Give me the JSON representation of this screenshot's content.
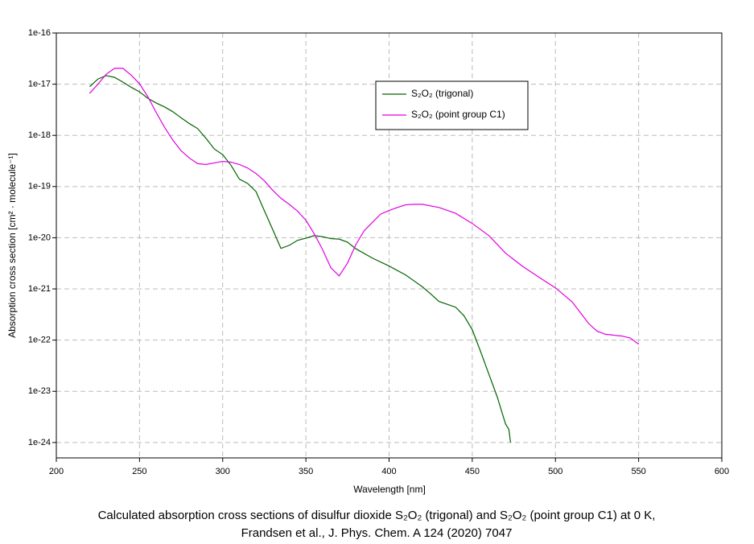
{
  "chart_data": {
    "type": "line",
    "x_label": "Wavelength [nm]",
    "y_label": "Absorption cross section [cm² · molecule⁻¹]",
    "caption": [
      "Calculated absorption cross sections of disulfur dioxide S₂O₂ (trigonal) and S₂O₂ (point group C1) at 0 K,",
      "Frandsen et al., J. Phys. Chem. A 124 (2020) 7047"
    ],
    "xlim": [
      200,
      600
    ],
    "xticks": [
      200,
      250,
      300,
      350,
      400,
      450,
      500,
      550,
      600
    ],
    "ylim": [
      5e-25,
      1e-16
    ],
    "yticks": [
      1e-24,
      1e-23,
      1e-22,
      1e-21,
      1e-20,
      1e-19,
      1e-18,
      1e-17,
      1e-16
    ],
    "yscale": "log",
    "grid": true,
    "legend": "upper right",
    "series": [
      {
        "name": "S₂O₂ (trigonal)",
        "color": "#006400",
        "x": [
          220,
          225,
          230,
          235,
          240,
          245,
          250,
          255,
          260,
          265,
          270,
          275,
          280,
          285,
          290,
          295,
          300,
          305,
          310,
          315,
          320,
          325,
          330,
          335,
          340,
          345,
          350,
          355,
          360,
          365,
          370,
          375,
          380,
          390,
          400,
          410,
          420,
          425,
          430,
          435,
          440,
          445,
          450,
          455,
          460,
          465,
          470,
          472,
          473
        ],
        "values": [
          8.9e-18,
          1.26e-17,
          1.47e-17,
          1.36e-17,
          1.1e-17,
          8.7e-18,
          7.1e-18,
          5.3e-18,
          4.3e-18,
          3.6e-18,
          2.9e-18,
          2.2e-18,
          1.7e-18,
          1.35e-18,
          8.7e-19,
          5.4e-19,
          4.2e-19,
          2.6e-19,
          1.4e-19,
          1.15e-19,
          8e-20,
          3.4e-20,
          1.46e-20,
          6.2e-21,
          7.1e-21,
          8.9e-21,
          9.8e-21,
          1.1e-20,
          1.05e-20,
          9.6e-21,
          9.4e-21,
          8.2e-21,
          6.1e-21,
          4e-21,
          2.8e-21,
          1.87e-21,
          1.1e-21,
          8e-22,
          5.7e-22,
          5e-22,
          4.4e-22,
          3e-22,
          1.6e-22,
          6e-23,
          2.15e-23,
          7.8e-24,
          2.3e-24,
          1.8e-24,
          1e-24
        ]
      },
      {
        "name": "S₂O₂ (point group C1)",
        "color": "#e000e0",
        "x": [
          220,
          225,
          230,
          235,
          240,
          245,
          250,
          255,
          260,
          265,
          270,
          275,
          280,
          285,
          290,
          295,
          300,
          305,
          310,
          315,
          320,
          325,
          330,
          335,
          340,
          345,
          350,
          355,
          360,
          365,
          370,
          375,
          380,
          385,
          390,
          395,
          400,
          405,
          410,
          415,
          420,
          430,
          440,
          450,
          460,
          470,
          480,
          490,
          500,
          510,
          520,
          525,
          530,
          540,
          545,
          550
        ],
        "values": [
          6.6e-18,
          1e-17,
          1.57e-17,
          2.04e-17,
          2.04e-17,
          1.5e-17,
          1.02e-17,
          5.7e-18,
          2.8e-18,
          1.45e-18,
          8.1e-19,
          5e-19,
          3.6e-19,
          2.8e-19,
          2.7e-19,
          2.9e-19,
          3.1e-19,
          3e-19,
          2.7e-19,
          2.3e-19,
          1.8e-19,
          1.3e-19,
          8.5e-20,
          5.9e-20,
          4.5e-20,
          3.3e-20,
          2.2e-20,
          1.2e-20,
          5.9e-21,
          2.6e-21,
          1.8e-21,
          3.2e-21,
          7.3e-21,
          1.37e-20,
          2e-20,
          2.9e-20,
          3.4e-20,
          3.9e-20,
          4.4e-20,
          4.5e-20,
          4.5e-20,
          3.9e-20,
          3e-20,
          1.9e-20,
          1.1e-20,
          5e-21,
          2.8e-21,
          1.7e-21,
          1.05e-21,
          5.6e-22,
          2.1e-22,
          1.5e-22,
          1.3e-22,
          1.2e-22,
          1.1e-22,
          8.3e-23
        ]
      }
    ]
  }
}
